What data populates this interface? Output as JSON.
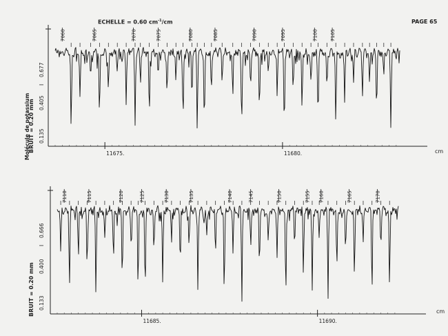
{
  "page": {
    "scale_label": "ECHELLE = 0.60 cm",
    "scale_sup": "-1",
    "scale_unit": "/cm",
    "page_number": "PAGE 65",
    "molecule_label": "Molécule de potassium",
    "unit_top": "cm",
    "unit_bottom": "cm"
  },
  "chart_data": [
    {
      "type": "line",
      "panel": "top",
      "noise_label": "BRUIT = 0.20 mm",
      "intensity_label": "I",
      "y_ticks": [
        "0.677",
        "0.405",
        "0.135"
      ],
      "x_ticks": [
        {
          "value": 11675,
          "label": "11675."
        },
        {
          "value": 11680,
          "label": "11680."
        }
      ],
      "xlim": [
        11673.6,
        11683.3
      ],
      "line_numbers": [
        "7060",
        "7065",
        "7070",
        "7075",
        "7080",
        "7085",
        "7090",
        "7095",
        "7100",
        "7105"
      ],
      "line_positions": [
        11673.8,
        11674.7,
        11675.8,
        11676.5,
        11677.4,
        11678.1,
        11679.2,
        11680.0,
        11680.9,
        11681.4
      ],
      "absorption_lines": [
        {
          "x": 11674.05,
          "d": 0.95
        },
        {
          "x": 11674.3,
          "d": 0.55
        },
        {
          "x": 11674.6,
          "d": 0.35
        },
        {
          "x": 11674.85,
          "d": 0.8
        },
        {
          "x": 11675.1,
          "d": 0.45
        },
        {
          "x": 11675.35,
          "d": 0.25
        },
        {
          "x": 11675.6,
          "d": 0.6
        },
        {
          "x": 11675.85,
          "d": 0.9
        },
        {
          "x": 11676.0,
          "d": 0.4
        },
        {
          "x": 11676.25,
          "d": 0.75
        },
        {
          "x": 11676.5,
          "d": 0.3
        },
        {
          "x": 11676.75,
          "d": 0.55
        },
        {
          "x": 11677.0,
          "d": 0.35
        },
        {
          "x": 11677.2,
          "d": 0.8
        },
        {
          "x": 11677.45,
          "d": 0.6
        },
        {
          "x": 11677.6,
          "d": 0.95
        },
        {
          "x": 11677.8,
          "d": 0.9
        },
        {
          "x": 11678.0,
          "d": 0.45
        },
        {
          "x": 11678.3,
          "d": 0.35
        },
        {
          "x": 11678.6,
          "d": 0.5
        },
        {
          "x": 11678.85,
          "d": 0.9
        },
        {
          "x": 11679.1,
          "d": 0.4
        },
        {
          "x": 11679.35,
          "d": 0.7
        },
        {
          "x": 11679.6,
          "d": 0.3
        },
        {
          "x": 11679.85,
          "d": 0.55
        },
        {
          "x": 11680.05,
          "d": 0.95
        },
        {
          "x": 11680.3,
          "d": 0.5
        },
        {
          "x": 11680.55,
          "d": 0.75
        },
        {
          "x": 11680.8,
          "d": 0.35
        },
        {
          "x": 11681.0,
          "d": 0.8
        },
        {
          "x": 11681.25,
          "d": 0.45
        },
        {
          "x": 11681.5,
          "d": 0.9
        },
        {
          "x": 11681.75,
          "d": 0.6
        },
        {
          "x": 11682.0,
          "d": 0.35
        },
        {
          "x": 11682.25,
          "d": 0.55
        },
        {
          "x": 11682.45,
          "d": 0.4
        },
        {
          "x": 11682.65,
          "d": 0.7
        },
        {
          "x": 11682.85,
          "d": 0.3
        },
        {
          "x": 11683.05,
          "d": 0.9
        }
      ]
    },
    {
      "type": "line",
      "panel": "bottom",
      "noise_label": "BRUIT = 0.20 mm",
      "intensity_label": "I",
      "y_ticks": [
        "0.666",
        "0.400",
        "0.133"
      ],
      "x_ticks": [
        {
          "value": 11685,
          "label": "11685."
        },
        {
          "value": 11690,
          "label": "11690."
        }
      ],
      "xlim": [
        11682.6,
        11692.3
      ],
      "line_numbers": [
        "7110",
        "7115",
        "7120",
        "7125",
        "7130",
        "7135",
        "7140",
        "7145",
        "7150",
        "7155",
        "7160",
        "7165",
        "7170"
      ],
      "line_positions": [
        11682.8,
        11683.5,
        11684.4,
        11685.0,
        11685.7,
        11686.4,
        11687.5,
        11688.1,
        11688.9,
        11689.7,
        11690.1,
        11690.9,
        11691.7
      ],
      "absorption_lines": [
        {
          "x": 11682.7,
          "d": 0.5
        },
        {
          "x": 11682.95,
          "d": 0.85
        },
        {
          "x": 11683.2,
          "d": 0.4
        },
        {
          "x": 11683.45,
          "d": 0.65
        },
        {
          "x": 11683.7,
          "d": 0.95
        },
        {
          "x": 11683.95,
          "d": 0.35
        },
        {
          "x": 11684.2,
          "d": 0.55
        },
        {
          "x": 11684.45,
          "d": 0.75
        },
        {
          "x": 11684.7,
          "d": 0.3
        },
        {
          "x": 11684.9,
          "d": 0.95
        },
        {
          "x": 11685.1,
          "d": 0.85
        },
        {
          "x": 11685.35,
          "d": 0.45
        },
        {
          "x": 11685.6,
          "d": 0.8
        },
        {
          "x": 11685.85,
          "d": 0.35
        },
        {
          "x": 11686.1,
          "d": 0.6
        },
        {
          "x": 11686.35,
          "d": 0.4
        },
        {
          "x": 11686.6,
          "d": 0.85
        },
        {
          "x": 11686.85,
          "d": 0.3
        },
        {
          "x": 11687.1,
          "d": 0.55
        },
        {
          "x": 11687.35,
          "d": 0.97
        },
        {
          "x": 11687.6,
          "d": 0.45
        },
        {
          "x": 11687.85,
          "d": 0.99
        },
        {
          "x": 11688.1,
          "d": 0.4
        },
        {
          "x": 11688.35,
          "d": 0.65
        },
        {
          "x": 11688.6,
          "d": 0.35
        },
        {
          "x": 11688.85,
          "d": 0.55
        },
        {
          "x": 11689.1,
          "d": 0.95
        },
        {
          "x": 11689.35,
          "d": 0.4
        },
        {
          "x": 11689.6,
          "d": 0.7
        },
        {
          "x": 11689.85,
          "d": 0.9
        },
        {
          "x": 11690.05,
          "d": 0.3
        },
        {
          "x": 11690.3,
          "d": 0.95
        },
        {
          "x": 11690.55,
          "d": 0.6
        },
        {
          "x": 11690.8,
          "d": 0.45
        },
        {
          "x": 11691.05,
          "d": 0.75
        },
        {
          "x": 11691.3,
          "d": 0.35
        },
        {
          "x": 11691.55,
          "d": 0.9
        },
        {
          "x": 11691.8,
          "d": 0.4
        },
        {
          "x": 11692.05,
          "d": 0.85
        }
      ]
    }
  ]
}
